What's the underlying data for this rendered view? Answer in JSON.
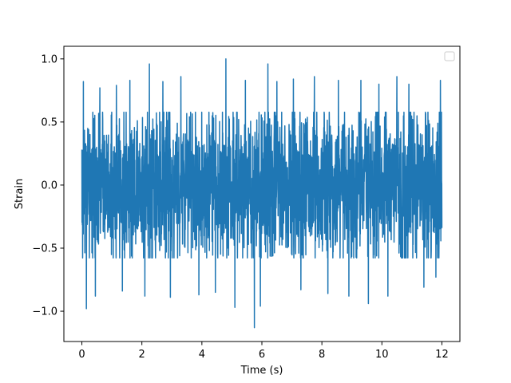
{
  "chart_data": {
    "type": "line",
    "title": "",
    "xlabel": "Time (s)",
    "ylabel": "Strain",
    "xlim": [
      -0.6,
      12.6
    ],
    "ylim": [
      -1.24,
      1.1
    ],
    "x_ticks": [
      0,
      2,
      4,
      6,
      8,
      10,
      12
    ],
    "x_tick_labels": [
      "0",
      "2",
      "4",
      "6",
      "8",
      "10",
      "12"
    ],
    "y_ticks": [
      -1.0,
      -0.5,
      0.0,
      0.5,
      1.0
    ],
    "y_tick_labels": [
      "−1.0",
      "−0.5",
      "0.0",
      "0.5",
      "1.0"
    ],
    "grid": false,
    "legend": {
      "placement": "top-right",
      "entries": []
    },
    "series": [
      {
        "color": "#1f77b4",
        "x_range": [
          0,
          12
        ],
        "typical_band": [
          -0.55,
          0.55
        ],
        "peaks": [
          {
            "x": 0.05,
            "y": 0.82
          },
          {
            "x": 0.15,
            "y": -0.98
          },
          {
            "x": 0.45,
            "y": -0.88
          },
          {
            "x": 0.6,
            "y": 0.77
          },
          {
            "x": 1.15,
            "y": 0.79
          },
          {
            "x": 1.35,
            "y": -0.84
          },
          {
            "x": 1.6,
            "y": 0.83
          },
          {
            "x": 2.1,
            "y": -0.88
          },
          {
            "x": 2.25,
            "y": 0.96
          },
          {
            "x": 2.7,
            "y": 0.82
          },
          {
            "x": 2.95,
            "y": -0.89
          },
          {
            "x": 3.3,
            "y": 0.86
          },
          {
            "x": 3.9,
            "y": -0.87
          },
          {
            "x": 4.45,
            "y": -0.85
          },
          {
            "x": 4.8,
            "y": 1.0
          },
          {
            "x": 5.1,
            "y": -0.97
          },
          {
            "x": 5.45,
            "y": 0.83
          },
          {
            "x": 5.75,
            "y": -1.13
          },
          {
            "x": 5.95,
            "y": -0.96
          },
          {
            "x": 6.2,
            "y": 0.96
          },
          {
            "x": 6.5,
            "y": 0.82
          },
          {
            "x": 7.05,
            "y": 0.84
          },
          {
            "x": 7.3,
            "y": -0.83
          },
          {
            "x": 7.75,
            "y": 0.86
          },
          {
            "x": 8.2,
            "y": -0.86
          },
          {
            "x": 8.55,
            "y": 0.83
          },
          {
            "x": 8.9,
            "y": -0.88
          },
          {
            "x": 9.3,
            "y": 0.83
          },
          {
            "x": 9.55,
            "y": -0.94
          },
          {
            "x": 9.9,
            "y": 0.8
          },
          {
            "x": 10.2,
            "y": -0.88
          },
          {
            "x": 10.5,
            "y": 0.86
          },
          {
            "x": 10.9,
            "y": 0.8
          },
          {
            "x": 11.4,
            "y": -0.81
          },
          {
            "x": 11.8,
            "y": -0.73
          },
          {
            "x": 11.95,
            "y": 0.83
          }
        ]
      }
    ]
  }
}
